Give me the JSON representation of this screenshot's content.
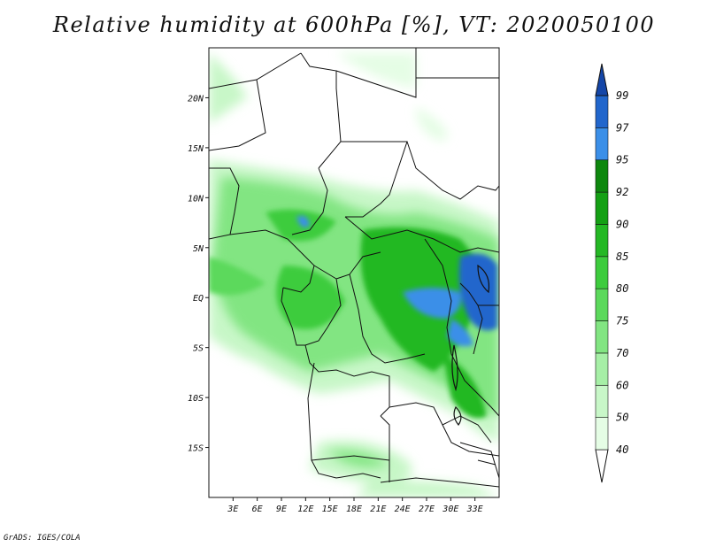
{
  "title": "Relative humidity at 600hPa [%], VT: 2020050100",
  "credit": "GrADS: IGES/COLA",
  "map": {
    "lon_range": [
      0,
      36
    ],
    "lat_range": [
      -20,
      25
    ],
    "lon_ticks": [
      "3E",
      "6E",
      "9E",
      "12E",
      "15E",
      "18E",
      "21E",
      "24E",
      "27E",
      "30E",
      "33E"
    ],
    "lat_ticks": [
      "20N",
      "15N",
      "10N",
      "5N",
      "EQ",
      "5S",
      "10S",
      "15S"
    ]
  },
  "colorbar": {
    "levels": [
      "40",
      "50",
      "60",
      "70",
      "75",
      "80",
      "85",
      "90",
      "92",
      "95",
      "97",
      "99"
    ],
    "colors": [
      "#ffffff",
      "#e5fde5",
      "#c8f7c8",
      "#a6efa6",
      "#82e582",
      "#5cd95c",
      "#3dcc3d",
      "#24b824",
      "#14a014",
      "#0d870d",
      "#3b8fe8",
      "#2166cc",
      "#1446a8"
    ]
  }
}
